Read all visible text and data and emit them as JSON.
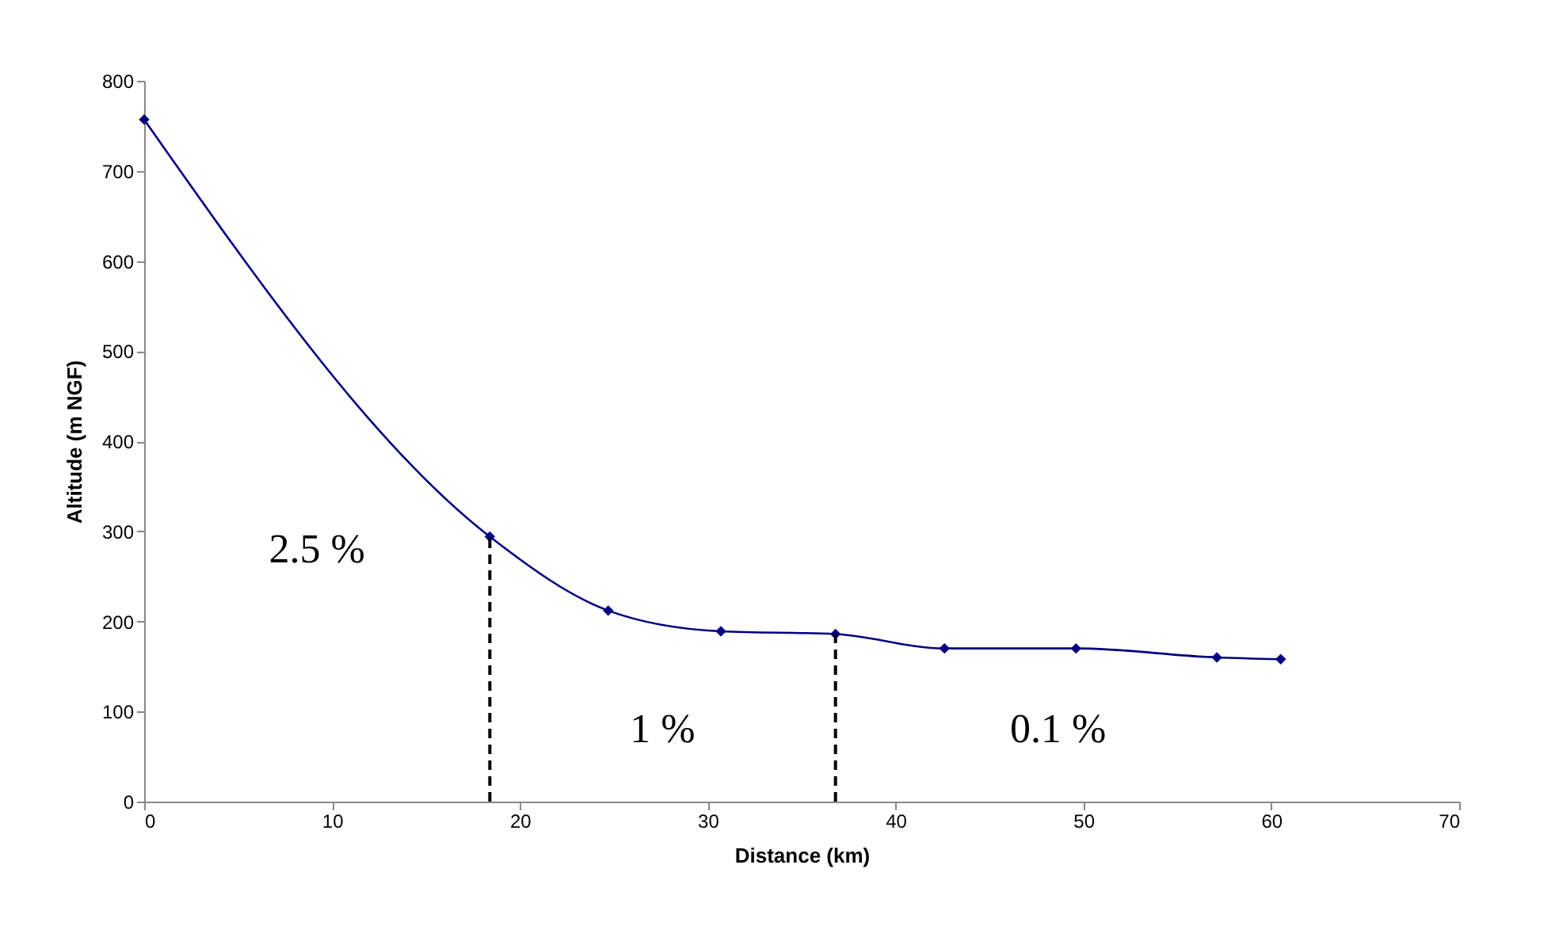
{
  "chart_data": {
    "type": "line",
    "xlabel": "Distance (km)",
    "ylabel": "Altitude (m NGF)",
    "x": [
      0,
      18.4,
      24.7,
      30.7,
      36.8,
      42.6,
      49.6,
      57.1,
      60.5
    ],
    "series": [
      {
        "color": "#000080",
        "values": [
          757,
          294,
          212,
          189,
          186,
          170,
          170,
          160,
          158
        ]
      }
    ],
    "marker": "diamond",
    "grid": false,
    "xlim": [
      0,
      70
    ],
    "xticks": [
      0,
      10,
      20,
      30,
      40,
      50,
      60,
      70
    ],
    "ylim": [
      0,
      800
    ],
    "yticks": [
      0,
      100,
      200,
      300,
      400,
      500,
      600,
      700,
      800
    ],
    "ref_lines": [
      {
        "axis": "x",
        "value": 18.4,
        "color": "#000000",
        "line_style": "dashed"
      },
      {
        "axis": "x",
        "value": 36.8,
        "color": "#000000",
        "line_style": "dashed"
      }
    ],
    "annotations": [
      "2.5 %",
      "1 %",
      "0.1 %"
    ]
  }
}
